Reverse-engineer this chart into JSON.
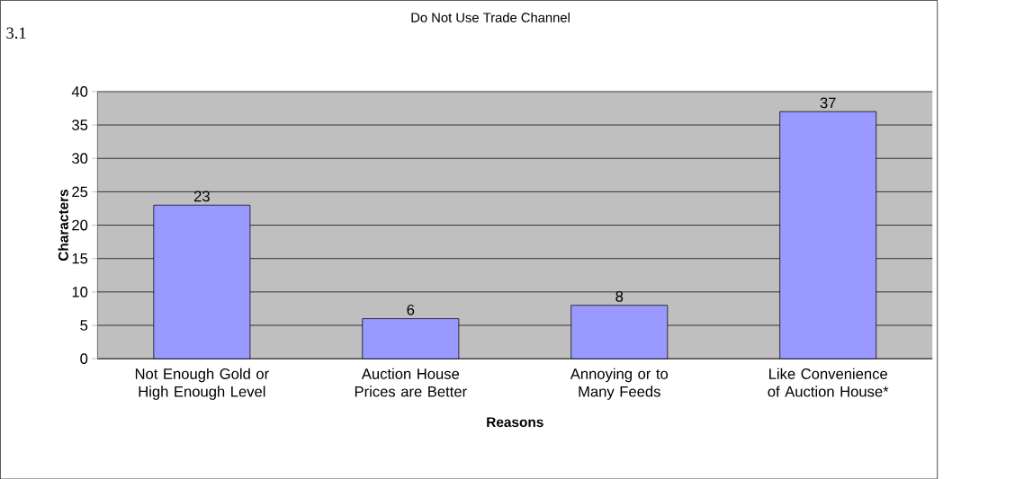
{
  "chart_data": {
    "type": "bar",
    "title": "Do Not Use Trade Channel",
    "annotations": [
      "3.1"
    ],
    "categories": [
      "Not Enough Gold or High Enough Level",
      "Auction House Prices are Better",
      "Annoying or to Many Feeds",
      "Like Convenience of Auction House*"
    ],
    "values": [
      23,
      6,
      8,
      37
    ],
    "color": "#9999ff",
    "xlabel": "Reasons",
    "ylabel": "Characters",
    "ylim": [
      0,
      40
    ],
    "yticks": [
      0,
      5,
      10,
      15,
      20,
      25,
      30,
      35,
      40
    ],
    "grid": "y",
    "data_labels": true
  }
}
